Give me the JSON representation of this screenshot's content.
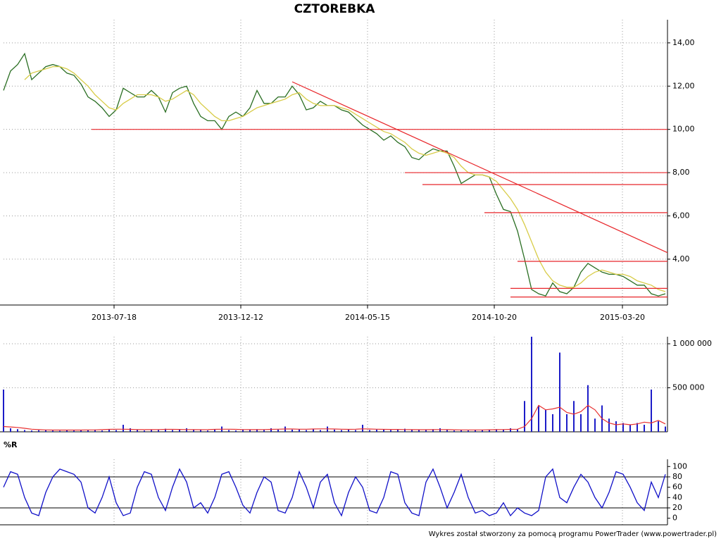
{
  "chart_data": [
    {
      "type": "line",
      "title": "CZTOREBKA",
      "x": [
        0,
        10,
        20,
        30,
        40,
        50,
        60,
        70,
        80,
        90,
        100,
        110,
        120,
        130,
        140,
        150,
        160,
        170,
        180,
        190,
        200,
        210,
        220,
        230,
        240,
        250,
        260,
        270,
        280,
        290,
        300,
        310,
        320,
        330,
        340,
        350,
        360,
        370,
        380,
        390,
        400,
        410,
        420,
        430,
        440,
        450,
        460,
        470,
        480,
        490,
        500,
        510,
        520,
        530,
        540,
        550,
        560,
        570,
        580,
        590,
        600,
        610,
        620,
        630,
        640,
        650,
        660,
        670,
        680,
        690,
        700,
        710,
        720,
        730,
        740,
        750,
        760,
        770,
        780,
        790,
        800,
        810,
        820,
        830,
        840,
        850,
        860,
        870,
        880,
        890,
        900,
        910,
        920,
        930,
        940
      ],
      "series": [
        {
          "color": "#2a6e22",
          "values": [
            11.8,
            12.7,
            13.0,
            13.5,
            12.3,
            12.6,
            12.9,
            13.0,
            12.9,
            12.6,
            12.5,
            12.1,
            11.5,
            11.3,
            11.0,
            10.6,
            10.9,
            11.9,
            11.7,
            11.5,
            11.5,
            11.8,
            11.5,
            10.8,
            11.7,
            11.9,
            12.0,
            11.2,
            10.6,
            10.4,
            10.4,
            10.0,
            10.6,
            10.8,
            10.6,
            11.0,
            11.8,
            11.2,
            11.2,
            11.5,
            11.5,
            12.0,
            11.6,
            10.9,
            11.0,
            11.3,
            11.1,
            11.1,
            10.9,
            10.8,
            10.5,
            10.2,
            10.0,
            9.8,
            9.5,
            9.7,
            9.4,
            9.2,
            8.7,
            8.6,
            8.9,
            9.1,
            9.0,
            9.0,
            8.3,
            7.5,
            7.7,
            7.9,
            7.9,
            7.8,
            7.0,
            6.3,
            6.2,
            5.3,
            4.0,
            2.6,
            2.4,
            2.3,
            2.9,
            2.5,
            2.4,
            2.7,
            3.4,
            3.8,
            3.6,
            3.4,
            3.3,
            3.3,
            3.2,
            3.0,
            2.8,
            2.8,
            2.4,
            2.3,
            2.4
          ]
        },
        {
          "color": "#d8cc48",
          "values": [
            null,
            null,
            null,
            12.3,
            12.6,
            12.7,
            12.8,
            12.9,
            12.9,
            12.8,
            12.6,
            12.3,
            12.0,
            11.6,
            11.3,
            11.0,
            10.9,
            11.2,
            11.4,
            11.6,
            11.6,
            11.6,
            11.5,
            11.3,
            11.4,
            11.6,
            11.8,
            11.6,
            11.2,
            10.9,
            10.6,
            10.4,
            10.4,
            10.5,
            10.6,
            10.8,
            11.0,
            11.1,
            11.2,
            11.3,
            11.4,
            11.6,
            11.7,
            11.4,
            11.2,
            11.1,
            11.1,
            11.1,
            11.0,
            10.9,
            10.7,
            10.5,
            10.3,
            10.1,
            9.9,
            9.8,
            9.6,
            9.4,
            9.1,
            8.9,
            8.8,
            8.9,
            9.0,
            8.9,
            8.7,
            8.3,
            8.0,
            7.9,
            7.9,
            7.8,
            7.6,
            7.2,
            6.8,
            6.3,
            5.6,
            4.8,
            4.0,
            3.4,
            3.0,
            2.8,
            2.7,
            2.7,
            2.9,
            3.2,
            3.4,
            3.5,
            3.4,
            3.3,
            3.3,
            3.2,
            3.0,
            2.9,
            2.8,
            2.6,
            2.5
          ]
        }
      ],
      "lines_color": "#e8262a",
      "lines": [
        {
          "x": [
            125,
            943
          ],
          "y": [
            10.0,
            10.0
          ]
        },
        {
          "x": [
            570,
            943
          ],
          "y": [
            8.0,
            8.0
          ]
        },
        {
          "x": [
            595,
            943
          ],
          "y": [
            7.45,
            7.45
          ]
        },
        {
          "x": [
            683,
            943
          ],
          "y": [
            6.15,
            6.15
          ]
        },
        {
          "x": [
            730,
            943
          ],
          "y": [
            3.9,
            3.9
          ]
        },
        {
          "x": [
            720,
            943
          ],
          "y": [
            2.65,
            2.65
          ]
        },
        {
          "x": [
            720,
            943
          ],
          "y": [
            2.25,
            2.25
          ]
        },
        {
          "x": [
            410,
            943
          ],
          "y": [
            12.2,
            4.3
          ]
        }
      ],
      "xlim": [
        0,
        943
      ],
      "xticks": [
        {
          "value": 157,
          "label": "2013-07-18"
        },
        {
          "value": 337,
          "label": "2013-12-12"
        },
        {
          "value": 517,
          "label": "2014-05-15"
        },
        {
          "value": 697,
          "label": "2014-10-20"
        },
        {
          "value": 879,
          "label": "2015-03-20"
        }
      ],
      "ylim": [
        1.88,
        15.07
      ],
      "yticks": [
        {
          "value": 4,
          "label": "4,00"
        },
        {
          "value": 6,
          "label": "6,00"
        },
        {
          "value": 8,
          "label": "8,00"
        },
        {
          "value": 10,
          "label": "10,00"
        },
        {
          "value": 12,
          "label": "12,00"
        },
        {
          "value": 14,
          "label": "14,00"
        }
      ],
      "grid": true
    },
    {
      "type": "bar",
      "x": [
        0,
        10,
        20,
        30,
        40,
        50,
        60,
        70,
        80,
        90,
        100,
        110,
        120,
        130,
        140,
        150,
        160,
        170,
        180,
        190,
        200,
        210,
        220,
        230,
        240,
        250,
        260,
        270,
        280,
        290,
        300,
        310,
        320,
        330,
        340,
        350,
        360,
        370,
        380,
        390,
        400,
        410,
        420,
        430,
        440,
        450,
        460,
        470,
        480,
        490,
        500,
        510,
        520,
        530,
        540,
        550,
        560,
        570,
        580,
        590,
        600,
        610,
        620,
        630,
        640,
        650,
        660,
        670,
        680,
        690,
        700,
        710,
        720,
        730,
        740,
        750,
        760,
        770,
        780,
        790,
        800,
        810,
        820,
        830,
        840,
        850,
        860,
        870,
        880,
        890,
        900,
        910,
        920,
        930,
        940
      ],
      "color": "#1c1cc8",
      "values": [
        480000,
        40000,
        30000,
        20000,
        15000,
        18000,
        20000,
        15000,
        12000,
        20000,
        15000,
        20000,
        18000,
        25000,
        15000,
        30000,
        20000,
        80000,
        40000,
        20000,
        15000,
        25000,
        20000,
        35000,
        20000,
        30000,
        40000,
        25000,
        20000,
        15000,
        30000,
        60000,
        20000,
        15000,
        25000,
        20000,
        30000,
        20000,
        40000,
        25000,
        60000,
        25000,
        30000,
        20000,
        35000,
        20000,
        60000,
        25000,
        20000,
        30000,
        20000,
        80000,
        20000,
        25000,
        30000,
        20000,
        25000,
        35000,
        20000,
        25000,
        20000,
        30000,
        40000,
        20000,
        15000,
        20000,
        15000,
        20000,
        20000,
        25000,
        30000,
        25000,
        40000,
        30000,
        350000,
        1080000,
        300000,
        250000,
        200000,
        900000,
        200000,
        350000,
        200000,
        530000,
        150000,
        300000,
        150000,
        120000,
        100000,
        80000,
        100000,
        80000,
        480000,
        120000,
        60000
      ],
      "line_color": "#e83030",
      "line_values": [
        60000,
        55000,
        50000,
        40000,
        30000,
        25000,
        22000,
        20000,
        20000,
        20000,
        20000,
        20000,
        22000,
        22000,
        25000,
        28000,
        30000,
        30000,
        28000,
        25000,
        25000,
        25000,
        26000,
        28000,
        28000,
        27000,
        26000,
        25000,
        24000,
        25000,
        28000,
        30000,
        30000,
        28000,
        26000,
        25000,
        25000,
        26000,
        28000,
        30000,
        32000,
        32000,
        30000,
        30000,
        32000,
        34000,
        34000,
        32000,
        30000,
        28000,
        30000,
        34000,
        32000,
        30000,
        28000,
        27000,
        27000,
        26000,
        25000,
        24000,
        24000,
        25000,
        26000,
        25000,
        23000,
        22000,
        22000,
        22000,
        22000,
        23000,
        25000,
        26000,
        28000,
        30000,
        60000,
        150000,
        300000,
        250000,
        260000,
        280000,
        220000,
        200000,
        230000,
        300000,
        250000,
        150000,
        100000,
        80000,
        90000,
        80000,
        90000,
        110000,
        100000,
        130000,
        90000
      ],
      "ylim": [
        0,
        1080000
      ],
      "yticks": [
        {
          "value": 500000,
          "label": "500 000"
        },
        {
          "value": 1000000,
          "label": "1 000 000"
        }
      ],
      "grid": true
    },
    {
      "type": "line",
      "title": "%R",
      "x": [
        0,
        10,
        20,
        30,
        40,
        50,
        60,
        70,
        80,
        90,
        100,
        110,
        120,
        130,
        140,
        150,
        160,
        170,
        180,
        190,
        200,
        210,
        220,
        230,
        240,
        250,
        260,
        270,
        280,
        290,
        300,
        310,
        320,
        330,
        340,
        350,
        360,
        370,
        380,
        390,
        400,
        410,
        420,
        430,
        440,
        450,
        460,
        470,
        480,
        490,
        500,
        510,
        520,
        530,
        540,
        550,
        560,
        570,
        580,
        590,
        600,
        610,
        620,
        630,
        640,
        650,
        660,
        670,
        680,
        690,
        700,
        710,
        720,
        730,
        740,
        750,
        760,
        770,
        780,
        790,
        800,
        810,
        820,
        830,
        840,
        850,
        860,
        870,
        880,
        890,
        900,
        910,
        920,
        930,
        940
      ],
      "series": [
        {
          "color": "#1010c8",
          "values": [
            60,
            90,
            85,
            40,
            10,
            5,
            50,
            80,
            95,
            90,
            85,
            70,
            20,
            10,
            40,
            80,
            30,
            5,
            10,
            60,
            90,
            85,
            40,
            15,
            60,
            95,
            70,
            20,
            30,
            10,
            40,
            85,
            90,
            60,
            25,
            10,
            50,
            80,
            70,
            15,
            10,
            40,
            90,
            60,
            20,
            70,
            85,
            30,
            5,
            50,
            80,
            60,
            15,
            10,
            40,
            90,
            85,
            30,
            10,
            5,
            70,
            95,
            60,
            20,
            50,
            85,
            40,
            10,
            15,
            5,
            10,
            30,
            5,
            20,
            10,
            5,
            15,
            80,
            95,
            40,
            30,
            60,
            85,
            70,
            40,
            20,
            50,
            90,
            85,
            60,
            30,
            15,
            70,
            40,
            85
          ]
        }
      ],
      "hlines": [
        20,
        80
      ],
      "ylim": [
        -12.7,
        114
      ],
      "yticks": [
        0,
        20,
        40,
        60,
        80,
        100
      ],
      "grid": false
    }
  ],
  "footer": "Wykres został stworzony za pomocą programu PowerTrader (www.powertrader.pl)"
}
